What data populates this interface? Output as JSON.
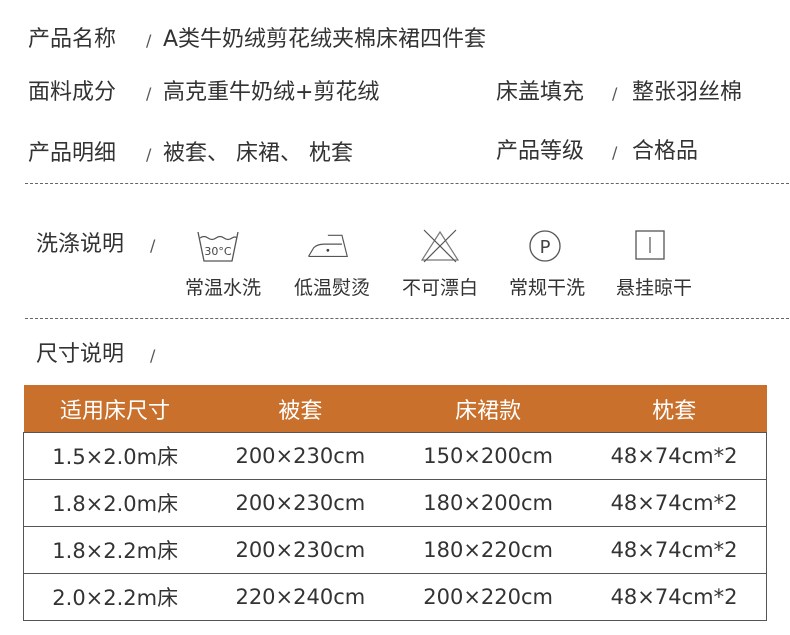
{
  "info": [
    {
      "label": "产品名称",
      "value": "A类牛奶绒剪花绒夹棉床裙四件套"
    },
    {
      "label": "面料成分",
      "value": "高克重牛奶绒+剪花绒"
    },
    {
      "label": "床盖填充",
      "value": "整张羽丝棉"
    },
    {
      "label": "产品明细",
      "value": "被套、 床裙、 枕套"
    },
    {
      "label": "产品等级",
      "value": "合格品"
    }
  ],
  "separator": "/",
  "care": {
    "title": "洗涤说明",
    "temp": "30°C",
    "items": [
      {
        "icon": "wash-30c-icon",
        "label": "常温水洗"
      },
      {
        "icon": "iron-low-icon",
        "label": "低温熨烫"
      },
      {
        "icon": "no-bleach-icon",
        "label": "不可漂白"
      },
      {
        "icon": "dry-clean-p-icon",
        "label": "常规干洗"
      },
      {
        "icon": "line-dry-icon",
        "label": "悬挂晾干"
      }
    ]
  },
  "size": {
    "title": "尺寸说明",
    "header_color": "#c8702c",
    "headers": [
      "适用床尺寸",
      "被套",
      "床裙款",
      "枕套"
    ],
    "rows": [
      [
        "1.5×2.0m床",
        "200×230cm",
        "150×200cm",
        "48×74cm*2"
      ],
      [
        "1.8×2.0m床",
        "200×230cm",
        "180×200cm",
        "48×74cm*2"
      ],
      [
        "1.8×2.2m床",
        "200×230cm",
        "180×220cm",
        "48×74cm*2"
      ],
      [
        "2.0×2.2m床",
        "220×240cm",
        "200×220cm",
        "48×74cm*2"
      ]
    ]
  }
}
